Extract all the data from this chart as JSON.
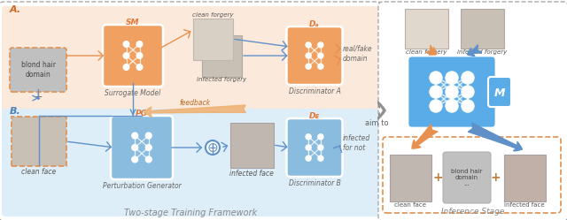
{
  "fig_width": 6.4,
  "fig_height": 2.49,
  "title_training": "Two-stage Training Framework",
  "title_inference": "Inference Stage",
  "label_A": "A.",
  "label_B": "B.",
  "text_SM": "SM",
  "text_PG": "PG",
  "text_DA": "Dₐ",
  "text_DB": "Dᴇ",
  "text_M": "M",
  "text_blond_hair": "blond hair\ndomain",
  "text_clean_face": "clean face",
  "text_surrogate": "Surrogate Model",
  "text_perturbation": "Perturbation Generator",
  "text_disc_A": "Discriminator A",
  "text_disc_B": "Discriminator B",
  "text_clean_forgery": "clean forgery",
  "text_infected_forgery": "infected forgery",
  "text_infected_face": "infected face",
  "text_real_fake": "real/fake",
  "text_domain": "domain",
  "text_infected_or_not": "infected\nfor not",
  "text_feedback": "feedback",
  "text_aim_to": "aim to",
  "text_clean_forgery2": "clean forgery",
  "text_infected_forgery2": "infected forgery",
  "text_clean_face2": "clean face",
  "text_blond_hair2": "blond hair\ndomain\n...",
  "text_infected_face2": "infected face",
  "orange_panel": "#fbeadb",
  "blue_panel": "#ddeef8",
  "orange_block": "#f0a060",
  "blue_block_light": "#8abce0",
  "blue_block_m": "#5aace8",
  "gray_blond": "#b8b8b8",
  "orange_feedback": "#f0b070",
  "blue_arrow": "#6090c8",
  "orange_arrow": "#e89050",
  "gray_arrow": "#909090",
  "white": "#ffffff"
}
